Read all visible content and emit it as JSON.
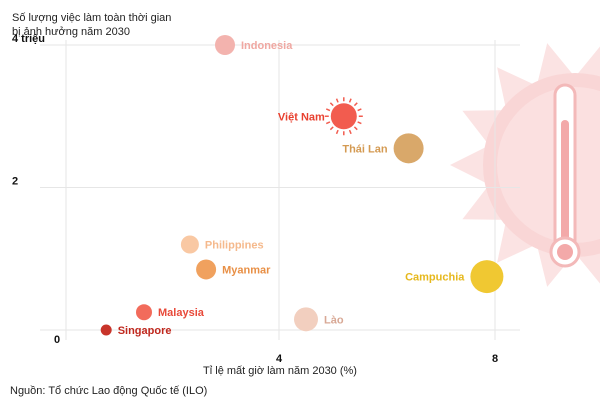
{
  "chart_data": {
    "type": "scatter",
    "title_lines": [
      "Số lượng việc làm toàn thời gian",
      "bị ảnh hưởng năm 2030"
    ],
    "xlabel": "Tỉ lệ mất giờ làm năm 2030 (%)",
    "ylabel": "",
    "x_ticks": [
      {
        "value": 4,
        "label": "4"
      },
      {
        "value": 8,
        "label": "8"
      }
    ],
    "y_ticks": [
      {
        "value": 0,
        "label": "0"
      },
      {
        "value": 2,
        "label": "2"
      },
      {
        "value": 4,
        "label": "4 triệu"
      }
    ],
    "xlim": [
      0,
      10
    ],
    "ylim": [
      0,
      4
    ],
    "grid": true,
    "points": [
      {
        "name": "Indonesia",
        "x": 3.0,
        "y": 4.0,
        "color": "#f3b3ae",
        "label_color": "#f0a8a2",
        "size": 1.0,
        "label_side": "right"
      },
      {
        "name": "Việt Nam",
        "x": 5.2,
        "y": 3.0,
        "color": "#f25c4f",
        "label_color": "#e8402f",
        "size": 1.3,
        "label_side": "left"
      },
      {
        "name": "Thái Lan",
        "x": 6.4,
        "y": 2.55,
        "color": "#d9a86a",
        "label_color": "#d49a52",
        "size": 1.5,
        "label_side": "left"
      },
      {
        "name": "Philippines",
        "x": 2.35,
        "y": 1.2,
        "color": "#f9c8a3",
        "label_color": "#f5b98c",
        "size": 0.9,
        "label_side": "right"
      },
      {
        "name": "Myanmar",
        "x": 2.65,
        "y": 0.85,
        "color": "#f0a15e",
        "label_color": "#e88f45",
        "size": 1.0,
        "label_side": "right"
      },
      {
        "name": "Campuchia",
        "x": 7.85,
        "y": 0.75,
        "color": "#f0c832",
        "label_color": "#e6b81c",
        "size": 1.65,
        "label_side": "left"
      },
      {
        "name": "Malaysia",
        "x": 1.5,
        "y": 0.25,
        "color": "#f26b5b",
        "label_color": "#e84a3a",
        "size": 0.8,
        "label_side": "right"
      },
      {
        "name": "Lào",
        "x": 4.5,
        "y": 0.15,
        "color": "#f2cfbf",
        "label_color": "#d8a895",
        "size": 1.2,
        "label_side": "right"
      },
      {
        "name": "Singapore",
        "x": 0.8,
        "y": 0.0,
        "color": "#c8342a",
        "label_color": "#c0281e",
        "size": 0.55,
        "label_side": "right"
      }
    ],
    "highlight": "Việt Nam"
  },
  "decoration": {
    "icon": "thermometer-sun-icon",
    "sun_color": "#f8d8d8",
    "thermo_color": "#f5b6b6"
  },
  "source": "Nguồn: Tổ chức Lao động Quốc tế (ILO)"
}
